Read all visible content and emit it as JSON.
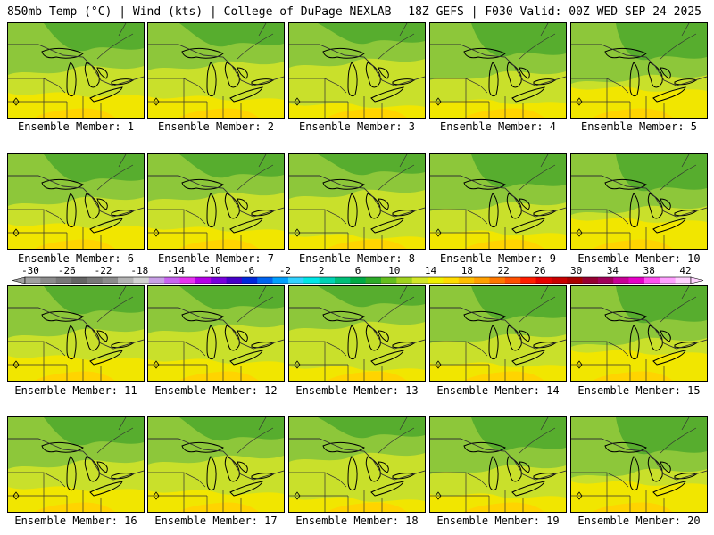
{
  "header": {
    "left": "850mb Temp (°C) | Wind (kts) | College of DuPage NEXLAB",
    "right": "18Z GEFS | F030 Valid: 00Z WED SEP 24 2025"
  },
  "label_prefix": "Ensemble Member: ",
  "members": [
    {
      "id": 1,
      "label": "Ensemble Member: 1"
    },
    {
      "id": 2,
      "label": "Ensemble Member: 2"
    },
    {
      "id": 3,
      "label": "Ensemble Member: 3"
    },
    {
      "id": 4,
      "label": "Ensemble Member: 4"
    },
    {
      "id": 5,
      "label": "Ensemble Member: 5"
    },
    {
      "id": 6,
      "label": "Ensemble Member: 6"
    },
    {
      "id": 7,
      "label": "Ensemble Member: 7"
    },
    {
      "id": 8,
      "label": "Ensemble Member: 8"
    },
    {
      "id": 9,
      "label": "Ensemble Member: 9"
    },
    {
      "id": 10,
      "label": "Ensemble Member: 10"
    },
    {
      "id": 11,
      "label": "Ensemble Member: 11"
    },
    {
      "id": 12,
      "label": "Ensemble Member: 12"
    },
    {
      "id": 13,
      "label": "Ensemble Member: 13"
    },
    {
      "id": 14,
      "label": "Ensemble Member: 14"
    },
    {
      "id": 15,
      "label": "Ensemble Member: 15"
    },
    {
      "id": 16,
      "label": "Ensemble Member: 16"
    },
    {
      "id": 17,
      "label": "Ensemble Member: 17"
    },
    {
      "id": 18,
      "label": "Ensemble Member: 18"
    },
    {
      "id": 19,
      "label": "Ensemble Member: 19"
    },
    {
      "id": 20,
      "label": "Ensemble Member: 20"
    }
  ],
  "colorbar": {
    "ticks": [
      "-30",
      "-26",
      "-22",
      "-18",
      "-14",
      "-10",
      "-6",
      "-2",
      "2",
      "6",
      "10",
      "14",
      "18",
      "22",
      "26",
      "30",
      "34",
      "38",
      "42"
    ],
    "colors": [
      "#a0a0a0",
      "#8c8c8c",
      "#787878",
      "#646464",
      "#787878",
      "#8c8c8c",
      "#b4b4b4",
      "#d2d2d2",
      "#c8a0e6",
      "#c864f0",
      "#e632f0",
      "#b400e6",
      "#7800dc",
      "#4600c8",
      "#0028dc",
      "#0064f0",
      "#00a0ff",
      "#32d2ff",
      "#00e6e6",
      "#00d2b4",
      "#00be78",
      "#00aa46",
      "#2daa28",
      "#64be1e",
      "#a0d21e",
      "#d2e628",
      "#f0f000",
      "#ffdc00",
      "#ffbe00",
      "#ffa000",
      "#ff7800",
      "#ff5000",
      "#ff1e00",
      "#e60000",
      "#c80000",
      "#aa0000",
      "#960032",
      "#a0005a",
      "#c80096",
      "#e600c8",
      "#ff50f0",
      "#ffa0ff",
      "#ffd2ff"
    ]
  },
  "map_colors": {
    "cool": "#57ad2e",
    "mild": "#8dc73a",
    "warm": "#c9e02b",
    "hot": "#f1e600",
    "hotter": "#ffd400",
    "border": "#333333",
    "coast": "#000000"
  }
}
